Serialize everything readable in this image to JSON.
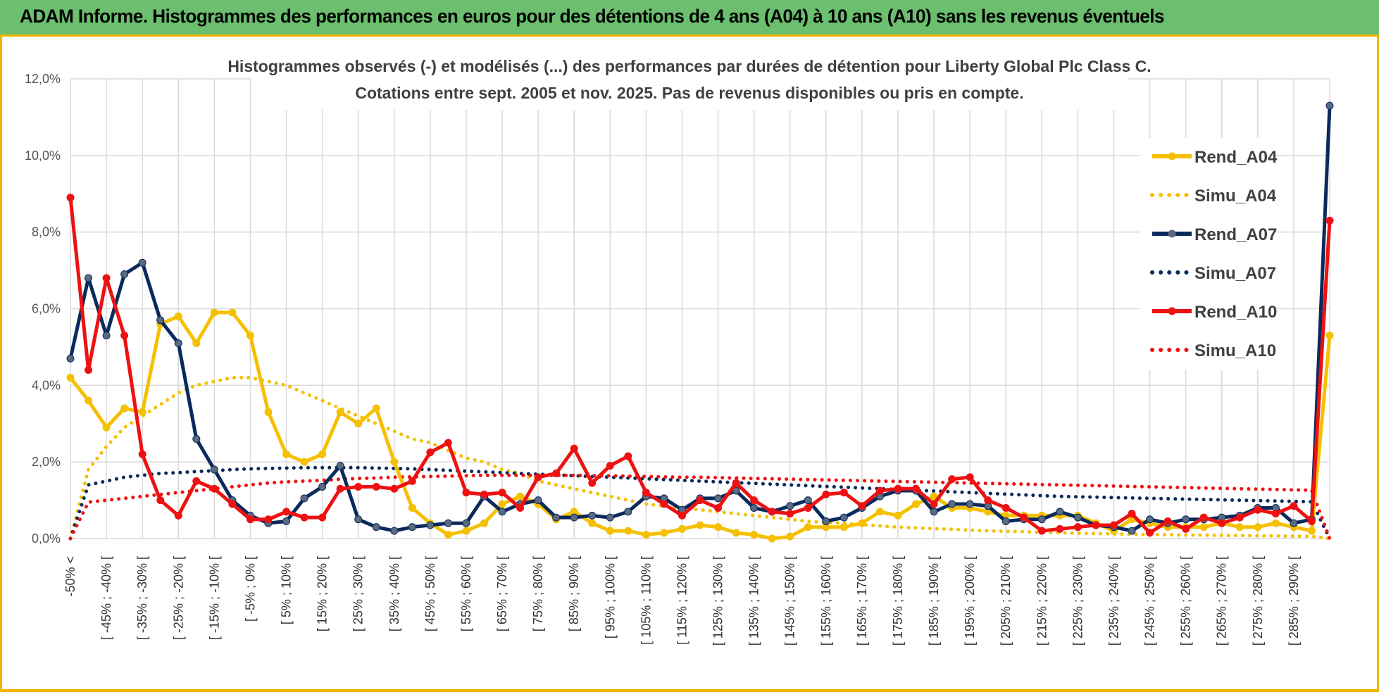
{
  "banner": {
    "title": "ADAM Informe. Histogrammes des performances en euros pour des détentions de 4 ans (A04) à 10 ans (A10) sans les revenus éventuels",
    "background": "#6bbf6e",
    "accent": "#f0b400"
  },
  "chart_data": {
    "type": "line",
    "title": "Histogrammes observés (-) et modélisés (...) des performances par durées de détention pour Liberty Global Plc Class C.",
    "subtitle": "Cotations entre sept. 2005 et nov. 2025. Pas de revenus disponibles ou pris en compte.",
    "xlabel": "",
    "ylabel": "",
    "ylim": [
      0,
      12
    ],
    "y_ticks": [
      "0,0%",
      "2,0%",
      "4,0%",
      "6,0%",
      "8,0%",
      "10,0%",
      "12,0%"
    ],
    "grid": true,
    "legend_position": "top-right",
    "x_labels": [
      "-50% <",
      "[ -45% ; -40% [",
      "[ -35% ; -30% [",
      "[ -25% ; -20% [",
      "[ -15% ; -10% [",
      "[ -5% ; 0% [",
      "[ 5% ; 10% [",
      "[ 15% ; 20% [",
      "[ 25% ; 30% [",
      "[ 35% ; 40% [",
      "[ 45% ; 50% [",
      "[ 55% ; 60% [",
      "[ 65% ; 70% [",
      "[ 75% ; 80% [",
      "[ 85% ; 90% [",
      "[ 95% ; 100% [",
      "[ 105% ; 110% [",
      "[ 115% ; 120% [",
      "[ 125% ; 130% [",
      "[ 135% ; 140% [",
      "[ 145% ; 150% [",
      "[ 155% ; 160% [",
      "[ 165% ; 170% [",
      "[ 175% ; 180% [",
      "[ 185% ; 190% [",
      "[ 195% ; 200% [",
      "[ 205% ; 210% [",
      "[ 215% ; 220% [",
      "[ 225% ; 230% [",
      "[ 235% ; 240% [",
      "[ 245% ; 250% [",
      "[ 255% ; 260% [",
      "[ 265% ; 270% [",
      "[ 275% ; 280% [",
      "[ 285% ; 290% ["
    ],
    "categories_count": 71,
    "series": [
      {
        "name": "Rend_A04",
        "style": "solid",
        "color": "#f5c000",
        "values": [
          4.2,
          3.6,
          2.9,
          3.4,
          3.3,
          5.6,
          5.8,
          5.1,
          5.9,
          5.9,
          5.3,
          3.3,
          2.2,
          2.0,
          2.2,
          3.3,
          3.0,
          3.4,
          2.0,
          0.8,
          0.4,
          0.1,
          0.2,
          0.4,
          0.9,
          1.1,
          0.9,
          0.5,
          0.7,
          0.4,
          0.2,
          0.2,
          0.1,
          0.15,
          0.25,
          0.35,
          0.3,
          0.15,
          0.1,
          0.0,
          0.05,
          0.3,
          0.3,
          0.3,
          0.4,
          0.7,
          0.6,
          0.9,
          1.1,
          0.8,
          0.8,
          0.7,
          0.6,
          0.6,
          0.6,
          0.6,
          0.6,
          0.4,
          0.2,
          0.5,
          0.4,
          0.3,
          0.3,
          0.3,
          0.4,
          0.3,
          0.3,
          0.4,
          0.3,
          0.2,
          5.3
        ],
        "last_value": 5.3
      },
      {
        "name": "Simu_A04",
        "style": "dotted",
        "color": "#f5c000",
        "values": [
          0,
          1.8,
          2.4,
          2.9,
          3.2,
          3.5,
          3.8,
          4.0,
          4.1,
          4.2,
          4.2,
          4.1,
          4.0,
          3.8,
          3.6,
          3.4,
          3.2,
          3.0,
          2.8,
          2.6,
          2.5,
          2.3,
          2.1,
          2.0,
          1.8,
          1.7,
          1.5,
          1.4,
          1.3,
          1.2,
          1.1,
          1.0,
          0.9,
          0.85,
          0.8,
          0.75,
          0.7,
          0.65,
          0.6,
          0.55,
          0.5,
          0.45,
          0.42,
          0.4,
          0.36,
          0.33,
          0.3,
          0.28,
          0.26,
          0.24,
          0.22,
          0.2,
          0.19,
          0.18,
          0.16,
          0.15,
          0.14,
          0.13,
          0.12,
          0.11,
          0.1,
          0.1,
          0.09,
          0.09,
          0.08,
          0.08,
          0.07,
          0.07,
          0.06,
          0.06,
          0.0
        ]
      },
      {
        "name": "Rend_A07",
        "style": "solid",
        "color": "#0b2a5c",
        "values": [
          4.7,
          6.8,
          5.3,
          6.9,
          7.2,
          5.7,
          5.1,
          2.6,
          1.8,
          1.0,
          0.6,
          0.4,
          0.45,
          1.05,
          1.35,
          1.9,
          0.5,
          0.3,
          0.2,
          0.3,
          0.35,
          0.4,
          0.4,
          1.1,
          0.7,
          0.9,
          1.0,
          0.55,
          0.55,
          0.6,
          0.55,
          0.7,
          1.1,
          1.05,
          0.75,
          1.05,
          1.05,
          1.25,
          0.8,
          0.7,
          0.85,
          1.0,
          0.45,
          0.55,
          0.8,
          1.1,
          1.25,
          1.25,
          0.7,
          0.9,
          0.9,
          0.85,
          0.45,
          0.5,
          0.5,
          0.7,
          0.55,
          0.35,
          0.3,
          0.2,
          0.5,
          0.4,
          0.5,
          0.5,
          0.55,
          0.6,
          0.8,
          0.8,
          0.4,
          0.5,
          11.3
        ],
        "last_value": 11.3
      },
      {
        "name": "Simu_A07",
        "style": "dotted",
        "color": "#0b2a5c",
        "values": [
          0,
          1.4,
          1.5,
          1.6,
          1.65,
          1.7,
          1.72,
          1.75,
          1.77,
          1.8,
          1.82,
          1.83,
          1.84,
          1.85,
          1.85,
          1.85,
          1.85,
          1.84,
          1.83,
          1.82,
          1.8,
          1.78,
          1.76,
          1.74,
          1.72,
          1.7,
          1.68,
          1.66,
          1.64,
          1.62,
          1.6,
          1.58,
          1.56,
          1.54,
          1.52,
          1.5,
          1.48,
          1.46,
          1.44,
          1.42,
          1.4,
          1.38,
          1.36,
          1.34,
          1.32,
          1.3,
          1.28,
          1.26,
          1.24,
          1.22,
          1.2,
          1.18,
          1.16,
          1.14,
          1.12,
          1.1,
          1.09,
          1.08,
          1.07,
          1.06,
          1.05,
          1.04,
          1.03,
          1.02,
          1.01,
          1.0,
          0.99,
          0.98,
          0.97,
          0.96,
          0.0
        ]
      },
      {
        "name": "Rend_A10",
        "style": "solid",
        "color": "#ee1111",
        "values": [
          8.9,
          4.4,
          6.8,
          5.3,
          2.2,
          1.0,
          0.6,
          1.5,
          1.3,
          0.9,
          0.5,
          0.5,
          0.7,
          0.55,
          0.55,
          1.3,
          1.35,
          1.35,
          1.3,
          1.5,
          2.25,
          2.5,
          1.2,
          1.15,
          1.2,
          0.8,
          1.6,
          1.7,
          2.35,
          1.45,
          1.9,
          2.15,
          1.2,
          0.9,
          0.6,
          1.0,
          0.8,
          1.45,
          1.0,
          0.7,
          0.65,
          0.8,
          1.15,
          1.2,
          0.85,
          1.25,
          1.3,
          1.3,
          0.9,
          1.55,
          1.6,
          1.0,
          0.8,
          0.55,
          0.2,
          0.25,
          0.3,
          0.35,
          0.35,
          0.65,
          0.15,
          0.45,
          0.25,
          0.55,
          0.4,
          0.55,
          0.75,
          0.65,
          0.85,
          0.45,
          8.3
        ],
        "last_value": 8.3
      },
      {
        "name": "Simu_A10",
        "style": "dotted",
        "color": "#ee1111",
        "values": [
          0,
          0.95,
          1.0,
          1.05,
          1.1,
          1.15,
          1.2,
          1.25,
          1.3,
          1.35,
          1.4,
          1.45,
          1.48,
          1.5,
          1.52,
          1.55,
          1.57,
          1.58,
          1.6,
          1.61,
          1.62,
          1.63,
          1.64,
          1.65,
          1.65,
          1.65,
          1.65,
          1.65,
          1.65,
          1.64,
          1.64,
          1.63,
          1.62,
          1.61,
          1.6,
          1.6,
          1.59,
          1.58,
          1.57,
          1.56,
          1.55,
          1.54,
          1.53,
          1.52,
          1.51,
          1.5,
          1.49,
          1.48,
          1.47,
          1.46,
          1.45,
          1.44,
          1.43,
          1.42,
          1.41,
          1.4,
          1.39,
          1.38,
          1.37,
          1.36,
          1.35,
          1.34,
          1.33,
          1.32,
          1.31,
          1.3,
          1.29,
          1.28,
          1.27,
          1.26,
          0.0
        ]
      }
    ]
  }
}
